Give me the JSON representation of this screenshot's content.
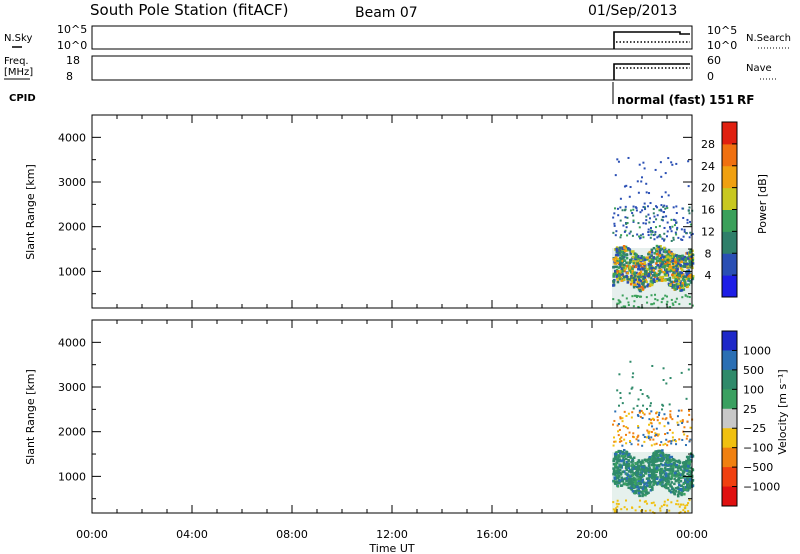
{
  "header": {
    "station": "South Pole Station (fitACF)",
    "beam": "Beam 07",
    "date": "01/Sep/2013"
  },
  "strip_noise": {
    "left_label": "N.Sky",
    "right_label": "N.Search",
    "left_ticks": [
      "10^5",
      "10^0"
    ],
    "right_ticks": [
      "10^5",
      "10^0"
    ]
  },
  "strip_freq": {
    "left_label_1": "Freq.",
    "left_label_2": "[MHz]",
    "right_label": "Nave",
    "left_ticks": [
      "18",
      "8"
    ],
    "right_ticks": [
      "60",
      "0"
    ]
  },
  "cpid": {
    "label": "CPID",
    "mode": "normal (fast)",
    "id": "151",
    "suffix": "RF"
  },
  "axes": {
    "ylabel": "Slant Range [km]",
    "xlabel": "Time UT",
    "x_ticks": [
      "00:00",
      "04:00",
      "08:00",
      "12:00",
      "16:00",
      "20:00",
      "00:00"
    ],
    "y_ticks": [
      "1000",
      "2000",
      "3000",
      "4000"
    ]
  },
  "colorbars": {
    "power": {
      "label": "Power [dB]",
      "ticks": [
        "4",
        "8",
        "12",
        "16",
        "20",
        "24",
        "28"
      ],
      "colors": [
        "#1e1ee6",
        "#2a4fb4",
        "#2f7f6a",
        "#3aa05a",
        "#c8c820",
        "#f0a010",
        "#f07010",
        "#e02010"
      ]
    },
    "velocity": {
      "label": "Velocity [m s⁻¹]",
      "ticks": [
        "1000",
        "500",
        "100",
        "25",
        "−25",
        "−100",
        "−500",
        "−1000"
      ],
      "colors": [
        "#1e28c8",
        "#2a6fb4",
        "#2f8a6a",
        "#3aa060",
        "#c8c8c8",
        "#f0c010",
        "#f08010",
        "#f04010",
        "#e01010"
      ]
    }
  },
  "chart_data": [
    {
      "type": "heatmap",
      "title": "",
      "xlabel": "",
      "ylabel": "Slant Range [km]",
      "xlim": [
        0,
        24
      ],
      "ylim": [
        180,
        4500
      ],
      "colorbar_label": "Power [dB]"
    },
    {
      "type": "heatmap",
      "title": "",
      "xlabel": "Time UT",
      "ylabel": "Slant Range [km]",
      "xlim": [
        0,
        24
      ],
      "ylim": [
        180,
        4500
      ],
      "colorbar_label": "Velocity [m s⁻¹]"
    }
  ]
}
